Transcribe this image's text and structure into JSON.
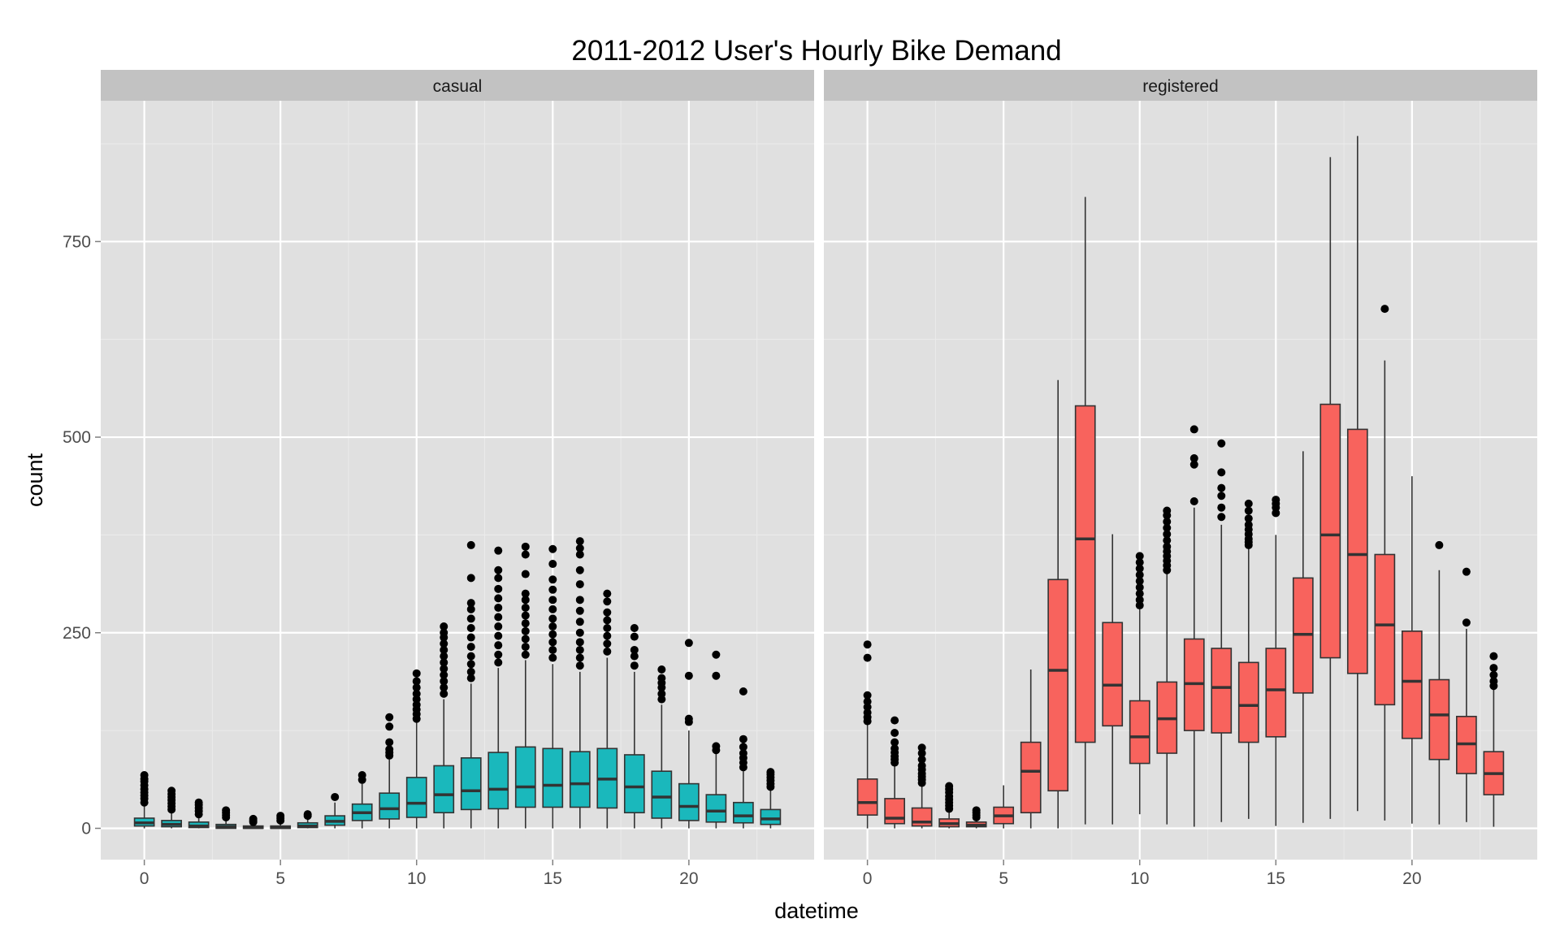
{
  "chart_data": {
    "type": "boxplot",
    "title": "2011-2012 User's Hourly Bike Demand",
    "xlabel": "datetime",
    "ylabel": "count",
    "ylim": [
      -40,
      930
    ],
    "xlim": [
      -1.6,
      24.6
    ],
    "y_ticks": [
      0,
      250,
      500,
      750
    ],
    "y_tick_labels": [
      "0",
      "250",
      "500",
      "750"
    ],
    "x_ticks": [
      0,
      5,
      10,
      15,
      20
    ],
    "x_tick_labels": [
      "0",
      "5",
      "10",
      "15",
      "20"
    ],
    "grid": true,
    "legend": "none",
    "facets": [
      {
        "name": "casual",
        "color": "#1ab8bc",
        "boxes": [
          {
            "x": 0,
            "q1": 3,
            "median": 7,
            "q3": 13,
            "whisker_low": 0,
            "whisker_high": 28,
            "outliers": [
              33,
              38,
              42,
              46,
              50,
              55,
              60,
              63,
              68
            ]
          },
          {
            "x": 1,
            "q1": 2,
            "median": 5,
            "q3": 10,
            "whisker_low": 0,
            "whisker_high": 20,
            "outliers": [
              24,
              28,
              32,
              36,
              40,
              44,
              48
            ]
          },
          {
            "x": 2,
            "q1": 1,
            "median": 3,
            "q3": 8,
            "whisker_low": 0,
            "whisker_high": 15,
            "outliers": [
              18,
              22,
              26,
              30,
              33
            ]
          },
          {
            "x": 3,
            "q1": 0,
            "median": 2,
            "q3": 5,
            "whisker_low": 0,
            "whisker_high": 11,
            "outliers": [
              14,
              17,
              20,
              23
            ]
          },
          {
            "x": 4,
            "q1": 0,
            "median": 1,
            "q3": 3,
            "whisker_low": 0,
            "whisker_high": 6,
            "outliers": [
              8,
              10,
              12
            ]
          },
          {
            "x": 5,
            "q1": 0,
            "median": 1,
            "q3": 3,
            "whisker_low": 0,
            "whisker_high": 7,
            "outliers": [
              10,
              13,
              16
            ]
          },
          {
            "x": 6,
            "q1": 1,
            "median": 3,
            "q3": 7,
            "whisker_low": 0,
            "whisker_high": 13,
            "outliers": [
              16,
              18
            ]
          },
          {
            "x": 7,
            "q1": 4,
            "median": 9,
            "q3": 16,
            "whisker_low": 0,
            "whisker_high": 33,
            "outliers": [
              40
            ]
          },
          {
            "x": 8,
            "q1": 10,
            "median": 20,
            "q3": 31,
            "whisker_low": 0,
            "whisker_high": 57,
            "outliers": [
              62,
              68
            ]
          },
          {
            "x": 9,
            "q1": 12,
            "median": 25,
            "q3": 45,
            "whisker_low": 0,
            "whisker_high": 88,
            "outliers": [
              93,
              97,
              101,
              110,
              130,
              142
            ]
          },
          {
            "x": 10,
            "q1": 14,
            "median": 32,
            "q3": 65,
            "whisker_low": 0,
            "whisker_high": 135,
            "outliers": [
              140,
              146,
              152,
              158,
              165,
              172,
              180,
              188,
              198
            ]
          },
          {
            "x": 11,
            "q1": 20,
            "median": 43,
            "q3": 80,
            "whisker_low": 0,
            "whisker_high": 165,
            "outliers": [
              172,
              180,
              188,
              196,
              204,
              212,
              220,
              228,
              236,
              244,
              250,
              258
            ]
          },
          {
            "x": 12,
            "q1": 24,
            "median": 48,
            "q3": 90,
            "whisker_low": 0,
            "whisker_high": 185,
            "outliers": [
              192,
              200,
              210,
              220,
              232,
              244,
              256,
              268,
              280,
              288,
              320,
              362
            ]
          },
          {
            "x": 13,
            "q1": 25,
            "median": 50,
            "q3": 97,
            "whisker_low": 0,
            "whisker_high": 205,
            "outliers": [
              212,
              222,
              234,
              246,
              258,
              270,
              282,
              294,
              306,
              320,
              330,
              355
            ]
          },
          {
            "x": 14,
            "q1": 27,
            "median": 53,
            "q3": 104,
            "whisker_low": 0,
            "whisker_high": 215,
            "outliers": [
              222,
              232,
              242,
              252,
              262,
              272,
              282,
              292,
              300,
              325,
              350,
              360
            ]
          },
          {
            "x": 15,
            "q1": 27,
            "median": 55,
            "q3": 102,
            "whisker_low": 0,
            "whisker_high": 210,
            "outliers": [
              218,
              228,
              238,
              248,
              258,
              268,
              280,
              292,
              305,
              318,
              338,
              357
            ]
          },
          {
            "x": 16,
            "q1": 27,
            "median": 57,
            "q3": 98,
            "whisker_low": 0,
            "whisker_high": 200,
            "outliers": [
              208,
              218,
              228,
              238,
              250,
              264,
              278,
              292,
              312,
              330,
              350,
              358,
              367
            ]
          },
          {
            "x": 17,
            "q1": 26,
            "median": 63,
            "q3": 102,
            "whisker_low": 0,
            "whisker_high": 218,
            "outliers": [
              226,
              236,
              246,
              256,
              266,
              276,
              290,
              300
            ]
          },
          {
            "x": 18,
            "q1": 20,
            "median": 53,
            "q3": 94,
            "whisker_low": 0,
            "whisker_high": 200,
            "outliers": [
              208,
              220,
              228,
              245,
              256
            ]
          },
          {
            "x": 19,
            "q1": 13,
            "median": 40,
            "q3": 73,
            "whisker_low": 0,
            "whisker_high": 158,
            "outliers": [
              165,
              172,
              180,
              186,
              192,
              203
            ]
          },
          {
            "x": 20,
            "q1": 10,
            "median": 28,
            "q3": 57,
            "whisker_low": 0,
            "whisker_high": 125,
            "outliers": [
              136,
              140,
              195,
              237
            ]
          },
          {
            "x": 21,
            "q1": 8,
            "median": 22,
            "q3": 43,
            "whisker_low": 0,
            "whisker_high": 95,
            "outliers": [
              100,
              105,
              195,
              222
            ]
          },
          {
            "x": 22,
            "q1": 7,
            "median": 16,
            "q3": 33,
            "whisker_low": 0,
            "whisker_high": 73,
            "outliers": [
              78,
              84,
              90,
              96,
              104,
              114,
              175
            ]
          },
          {
            "x": 23,
            "q1": 5,
            "median": 12,
            "q3": 24,
            "whisker_low": 0,
            "whisker_high": 50,
            "outliers": [
              53,
              57,
              61,
              65,
              69,
              72
            ]
          }
        ]
      },
      {
        "name": "registered",
        "color": "#f8635d",
        "boxes": [
          {
            "x": 0,
            "q1": 17,
            "median": 33,
            "q3": 63,
            "whisker_low": 0,
            "whisker_high": 132,
            "outliers": [
              137,
              142,
              148,
              155,
              162,
              170,
              218,
              235
            ]
          },
          {
            "x": 1,
            "q1": 6,
            "median": 13,
            "q3": 38,
            "whisker_low": 0,
            "whisker_high": 80,
            "outliers": [
              84,
              88,
              92,
              97,
              102,
              110,
              122,
              138
            ]
          },
          {
            "x": 2,
            "q1": 3,
            "median": 8,
            "q3": 26,
            "whisker_low": 0,
            "whisker_high": 55,
            "outliers": [
              58,
              62,
              66,
              70,
              75,
              80,
              88,
              96,
              103
            ]
          },
          {
            "x": 3,
            "q1": 2,
            "median": 6,
            "q3": 12,
            "whisker_low": 0,
            "whisker_high": 22,
            "outliers": [
              25,
              29,
              33,
              37,
              41,
              46,
              50,
              54
            ]
          },
          {
            "x": 4,
            "q1": 2,
            "median": 4,
            "q3": 8,
            "whisker_low": 0,
            "whisker_high": 12,
            "outliers": [
              14,
              17,
              20,
              23
            ]
          },
          {
            "x": 5,
            "q1": 6,
            "median": 16,
            "q3": 27,
            "whisker_low": 0,
            "whisker_high": 55,
            "outliers": []
          },
          {
            "x": 6,
            "q1": 20,
            "median": 73,
            "q3": 110,
            "whisker_low": 0,
            "whisker_high": 203,
            "outliers": []
          },
          {
            "x": 7,
            "q1": 48,
            "median": 202,
            "q3": 318,
            "whisker_low": 0,
            "whisker_high": 573,
            "outliers": []
          },
          {
            "x": 8,
            "q1": 110,
            "median": 370,
            "q3": 540,
            "whisker_low": 5,
            "whisker_high": 807,
            "outliers": []
          },
          {
            "x": 9,
            "q1": 131,
            "median": 183,
            "q3": 263,
            "whisker_low": 5,
            "whisker_high": 376,
            "outliers": []
          },
          {
            "x": 10,
            "q1": 83,
            "median": 117,
            "q3": 163,
            "whisker_low": 18,
            "whisker_high": 280,
            "outliers": [
              285,
              292,
              300,
              308,
              316,
              324,
              332,
              340,
              348
            ]
          },
          {
            "x": 11,
            "q1": 96,
            "median": 140,
            "q3": 187,
            "whisker_low": 5,
            "whisker_high": 325,
            "outliers": [
              330,
              336,
              342,
              348,
              354,
              360,
              368,
              376,
              384,
              392,
              400,
              406
            ]
          },
          {
            "x": 12,
            "q1": 125,
            "median": 185,
            "q3": 242,
            "whisker_low": 2,
            "whisker_high": 410,
            "outliers": [
              418,
              465,
              473,
              510
            ]
          },
          {
            "x": 13,
            "q1": 122,
            "median": 180,
            "q3": 230,
            "whisker_low": 8,
            "whisker_high": 388,
            "outliers": [
              398,
              410,
              425,
              435,
              455,
              492
            ]
          },
          {
            "x": 14,
            "q1": 110,
            "median": 157,
            "q3": 212,
            "whisker_low": 12,
            "whisker_high": 358,
            "outliers": [
              362,
              366,
              370,
              376,
              382,
              388,
              396,
              406,
              415
            ]
          },
          {
            "x": 15,
            "q1": 117,
            "median": 177,
            "q3": 230,
            "whisker_low": 3,
            "whisker_high": 375,
            "outliers": [
              403,
              410,
              415,
              420
            ]
          },
          {
            "x": 16,
            "q1": 173,
            "median": 248,
            "q3": 320,
            "whisker_low": 7,
            "whisker_high": 482,
            "outliers": []
          },
          {
            "x": 17,
            "q1": 218,
            "median": 375,
            "q3": 542,
            "whisker_low": 12,
            "whisker_high": 858,
            "outliers": []
          },
          {
            "x": 18,
            "q1": 198,
            "median": 350,
            "q3": 510,
            "whisker_low": 22,
            "whisker_high": 885,
            "outliers": []
          },
          {
            "x": 19,
            "q1": 158,
            "median": 260,
            "q3": 350,
            "whisker_low": 10,
            "whisker_high": 598,
            "outliers": [
              664
            ]
          },
          {
            "x": 20,
            "q1": 115,
            "median": 188,
            "q3": 252,
            "whisker_low": 6,
            "whisker_high": 450,
            "outliers": []
          },
          {
            "x": 21,
            "q1": 88,
            "median": 145,
            "q3": 190,
            "whisker_low": 5,
            "whisker_high": 330,
            "outliers": [
              362
            ]
          },
          {
            "x": 22,
            "q1": 70,
            "median": 108,
            "q3": 143,
            "whisker_low": 8,
            "whisker_high": 255,
            "outliers": [
              263,
              328
            ]
          },
          {
            "x": 23,
            "q1": 43,
            "median": 70,
            "q3": 98,
            "whisker_low": 2,
            "whisker_high": 178,
            "outliers": [
              182,
              188,
              196,
              205,
              220
            ]
          }
        ]
      }
    ]
  }
}
